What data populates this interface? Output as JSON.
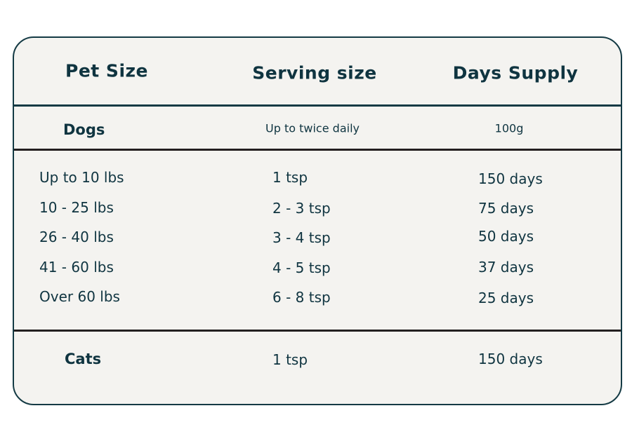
{
  "header": {
    "col1": "Pet Size",
    "col2": "Serving size",
    "col3": "Days Supply"
  },
  "dogs": {
    "label": "Dogs",
    "serving": "Up to twice daily",
    "supply": "100g"
  },
  "rows": [
    {
      "size": "Up to 10 lbs",
      "serving": "1 tsp",
      "days": "150 days"
    },
    {
      "size": "10 - 25 lbs",
      "serving": "2 - 3 tsp",
      "days": "75 days"
    },
    {
      "size": "26 - 40 lbs",
      "serving": "3 - 4 tsp",
      "days": "50 days"
    },
    {
      "size": "41 - 60 lbs",
      "serving": "4 - 5 tsp",
      "days": "37 days"
    },
    {
      "size": "Over 60 lbs",
      "serving": "6 - 8 tsp",
      "days": "25 days"
    }
  ],
  "cats": {
    "label": "Cats",
    "serving": "1 tsp",
    "days": "150 days"
  },
  "colors": {
    "text": "#0f3440",
    "border": "#143a44",
    "background": "#f4f3f0",
    "divider_dark": "#231f20"
  }
}
